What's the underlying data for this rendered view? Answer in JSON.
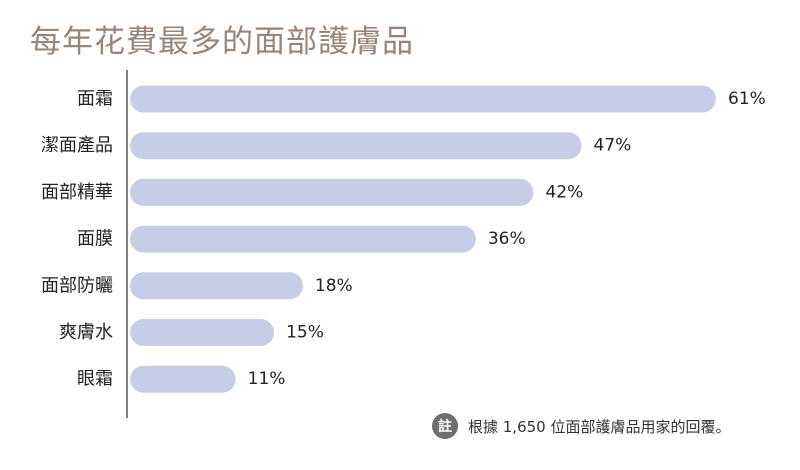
{
  "chart_data": {
    "type": "bar",
    "orientation": "horizontal",
    "title": "每年花費最多的面部護膚品",
    "categories": [
      "面霜",
      "潔面產品",
      "面部精華",
      "面膜",
      "面部防曬",
      "爽膚水",
      "眼霜"
    ],
    "values": [
      61,
      47,
      42,
      36,
      18,
      15,
      11
    ],
    "value_labels": [
      "61%",
      "47%",
      "42%",
      "36%",
      "18%",
      "15%",
      "11%"
    ],
    "unit": "%",
    "xlim": [
      0,
      61
    ],
    "grid": false,
    "bar_color": "#c7cde6",
    "axis_color": "#555555"
  },
  "note": {
    "badge": "註",
    "text": "根據 1,650 位面部護膚品用家的回覆。"
  }
}
